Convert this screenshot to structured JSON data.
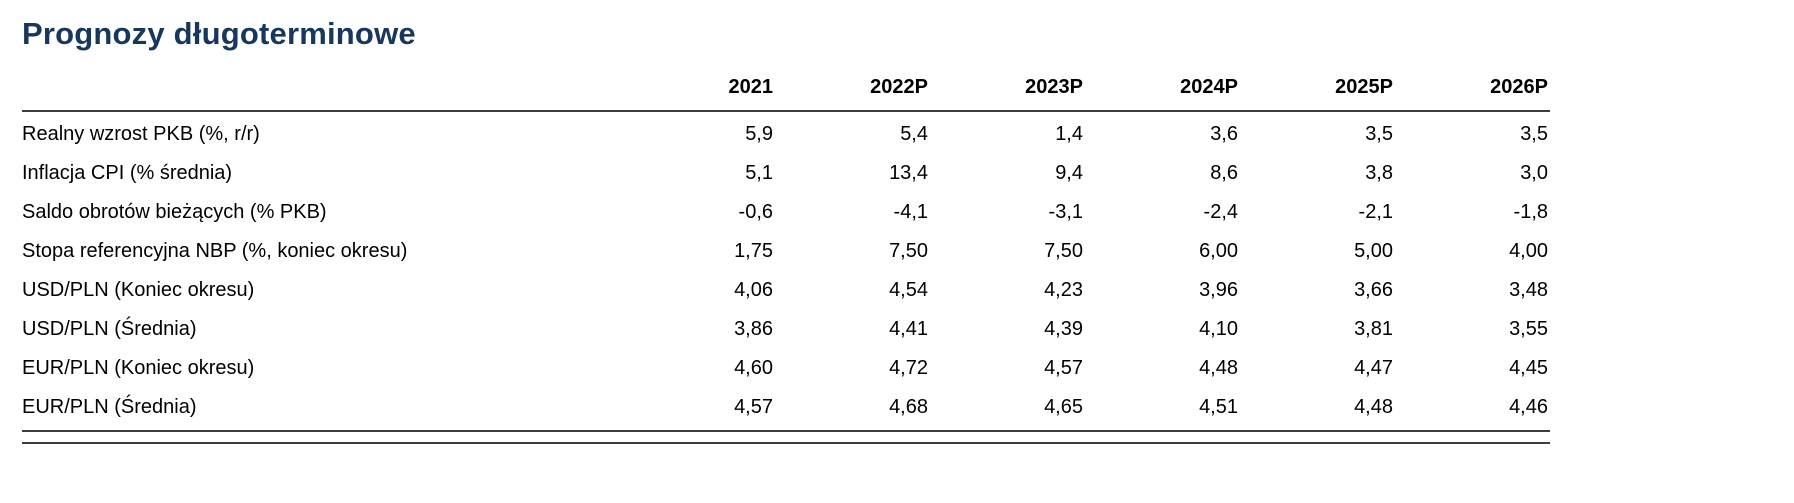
{
  "page": {
    "title": "Prognozy długoterminowe"
  },
  "colors": {
    "title": "#17375D",
    "rule": "#3d3d3d",
    "text": "#000000"
  },
  "table": {
    "columns": [
      "2021",
      "2022P",
      "2023P",
      "2024P",
      "2025P",
      "2026P"
    ],
    "rows": [
      {
        "label": "Realny wzrost PKB (%, r/r)",
        "values": [
          "5,9",
          "5,4",
          "1,4",
          "3,6",
          "3,5",
          "3,5"
        ]
      },
      {
        "label": "Inflacja CPI (% średnia)",
        "values": [
          "5,1",
          "13,4",
          "9,4",
          "8,6",
          "3,8",
          "3,0"
        ]
      },
      {
        "label": "Saldo obrotów bieżących (% PKB)",
        "values": [
          "-0,6",
          "-4,1",
          "-3,1",
          "-2,4",
          "-2,1",
          "-1,8"
        ]
      },
      {
        "label": "Stopa referencyjna NBP (%, koniec okresu)",
        "values": [
          "1,75",
          "7,50",
          "7,50",
          "6,00",
          "5,00",
          "4,00"
        ]
      },
      {
        "label": "USD/PLN (Koniec okresu)",
        "values": [
          "4,06",
          "4,54",
          "4,23",
          "3,96",
          "3,66",
          "3,48"
        ]
      },
      {
        "label": "USD/PLN (Średnia)",
        "values": [
          "3,86",
          "4,41",
          "4,39",
          "4,10",
          "3,81",
          "3,55"
        ]
      },
      {
        "label": "EUR/PLN (Koniec okresu)",
        "values": [
          "4,60",
          "4,72",
          "4,57",
          "4,48",
          "4,47",
          "4,45"
        ]
      },
      {
        "label": "EUR/PLN (Średnia)",
        "values": [
          "4,57",
          "4,68",
          "4,65",
          "4,51",
          "4,48",
          "4,46"
        ]
      }
    ]
  },
  "chart_data": {
    "type": "table",
    "title": "Prognozy długoterminowe",
    "categories": [
      "2021",
      "2022P",
      "2023P",
      "2024P",
      "2025P",
      "2026P"
    ],
    "series": [
      {
        "name": "Realny wzrost PKB (%, r/r)",
        "values": [
          5.9,
          5.4,
          1.4,
          3.6,
          3.5,
          3.5
        ]
      },
      {
        "name": "Inflacja CPI (% średnia)",
        "values": [
          5.1,
          13.4,
          9.4,
          8.6,
          3.8,
          3.0
        ]
      },
      {
        "name": "Saldo obrotów bieżących (% PKB)",
        "values": [
          -0.6,
          -4.1,
          -3.1,
          -2.4,
          -2.1,
          -1.8
        ]
      },
      {
        "name": "Stopa referencyjna NBP (%, koniec okresu)",
        "values": [
          1.75,
          7.5,
          7.5,
          6.0,
          5.0,
          4.0
        ]
      },
      {
        "name": "USD/PLN (Koniec okresu)",
        "values": [
          4.06,
          4.54,
          4.23,
          3.96,
          3.66,
          3.48
        ]
      },
      {
        "name": "USD/PLN (Średnia)",
        "values": [
          3.86,
          4.41,
          4.39,
          4.1,
          3.81,
          3.55
        ]
      },
      {
        "name": "EUR/PLN (Koniec okresu)",
        "values": [
          4.6,
          4.72,
          4.57,
          4.48,
          4.47,
          4.45
        ]
      },
      {
        "name": "EUR/PLN (Średnia)",
        "values": [
          4.57,
          4.68,
          4.65,
          4.51,
          4.48,
          4.46
        ]
      }
    ]
  }
}
